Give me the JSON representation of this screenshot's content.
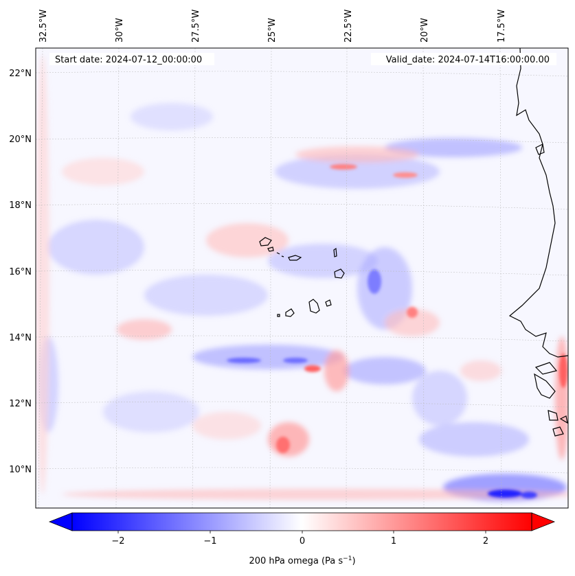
{
  "header": {
    "start_date": "Start date: 2024-07-12_00:00:00",
    "valid_date": "Valid_date: 2024-07-14T16:00:00.00"
  },
  "lon_labels": [
    "32.5°W",
    "30°W",
    "27.5°W",
    "25°W",
    "22.5°W",
    "20°W",
    "17.5°W"
  ],
  "lat_labels": [
    "22°N",
    "20°N",
    "18°N",
    "16°N",
    "14°N",
    "12°N",
    "10°N"
  ],
  "colorbar": {
    "label": "200 hPa omega (Pa s",
    "label_sup": "−1",
    "label_close": ")",
    "ticks": [
      "−2",
      "−1",
      "0",
      "1",
      "2"
    ],
    "colormap": "bwr",
    "colors": {
      "low": "#0000ff",
      "mid": "#ffffff",
      "high": "#ff0000"
    }
  },
  "map": {
    "field": "200 hPa omega",
    "coastline_color": "#000000",
    "gridline_style": "dotted"
  }
}
